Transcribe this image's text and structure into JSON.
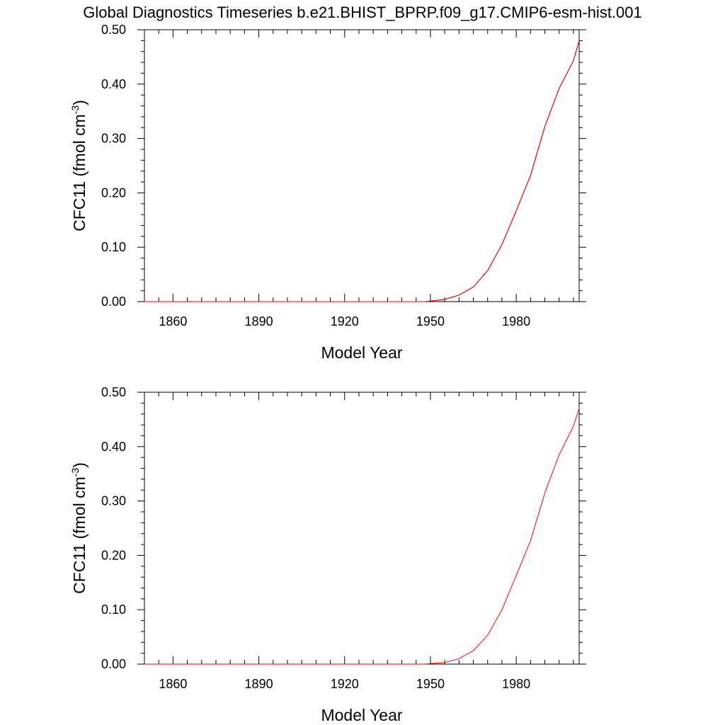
{
  "figure_title": "Global Diagnostics Timeseries b.e21.BHIST_BPRP.f09_g17.CMIP6-esm-hist.001",
  "chart_data": [
    {
      "type": "line",
      "xlabel": "Model Year",
      "ylabel": {
        "main": "CFC11 (fmol cm",
        "sup": "-3",
        "close": ")"
      },
      "xlim": [
        1850,
        2002
      ],
      "ylim": [
        0,
        0.5
      ],
      "xticks": [
        1860,
        1890,
        1920,
        1950,
        1980
      ],
      "xtick_labels": [
        "1860",
        "1890",
        "1920",
        "1950",
        "1980"
      ],
      "yticks": [
        0,
        0.1,
        0.2,
        0.3,
        0.4,
        0.5
      ],
      "ytick_labels": [
        "0.00",
        "0.10",
        "0.20",
        "0.30",
        "0.40",
        "0.50"
      ],
      "grid": false,
      "series": [
        {
          "color": "#000000",
          "x": [
            1850,
            1948,
            1950,
            1955,
            1960,
            1965,
            1970,
            1975,
            1980,
            1985,
            1990,
            1995,
            2000,
            2002
          ],
          "y": [
            0,
            0,
            0.001,
            0.004,
            0.012,
            0.027,
            0.057,
            0.105,
            0.167,
            0.232,
            0.322,
            0.392,
            0.443,
            0.48
          ]
        },
        {
          "color": "#ff0000",
          "x": [
            1850,
            1948,
            1950,
            1955,
            1960,
            1965,
            1970,
            1975,
            1980,
            1985,
            1990,
            1995,
            2000,
            2002
          ],
          "y": [
            0,
            0,
            0.001,
            0.004,
            0.012,
            0.027,
            0.057,
            0.105,
            0.167,
            0.232,
            0.322,
            0.392,
            0.443,
            0.48
          ]
        }
      ]
    },
    {
      "type": "line",
      "xlabel": "Model Year",
      "ylabel": {
        "main": "CFC11 (fmol cm",
        "sup": "-3",
        "close": ")"
      },
      "xlim": [
        1850,
        2002
      ],
      "ylim": [
        0,
        0.5
      ],
      "xticks": [
        1860,
        1890,
        1920,
        1950,
        1980
      ],
      "xtick_labels": [
        "1860",
        "1890",
        "1920",
        "1950",
        "1980"
      ],
      "yticks": [
        0,
        0.1,
        0.2,
        0.3,
        0.4,
        0.5
      ],
      "ytick_labels": [
        "0.00",
        "0.10",
        "0.20",
        "0.30",
        "0.40",
        "0.50"
      ],
      "grid": false,
      "series": [
        {
          "color": "#ff0000",
          "x": [
            1850,
            1948,
            1950,
            1955,
            1960,
            1965,
            1970,
            1975,
            1980,
            1985,
            1990,
            1995,
            2000,
            2002
          ],
          "y": [
            0,
            0,
            0.001,
            0.003,
            0.01,
            0.025,
            0.053,
            0.1,
            0.163,
            0.227,
            0.315,
            0.385,
            0.438,
            0.47
          ]
        }
      ]
    }
  ]
}
